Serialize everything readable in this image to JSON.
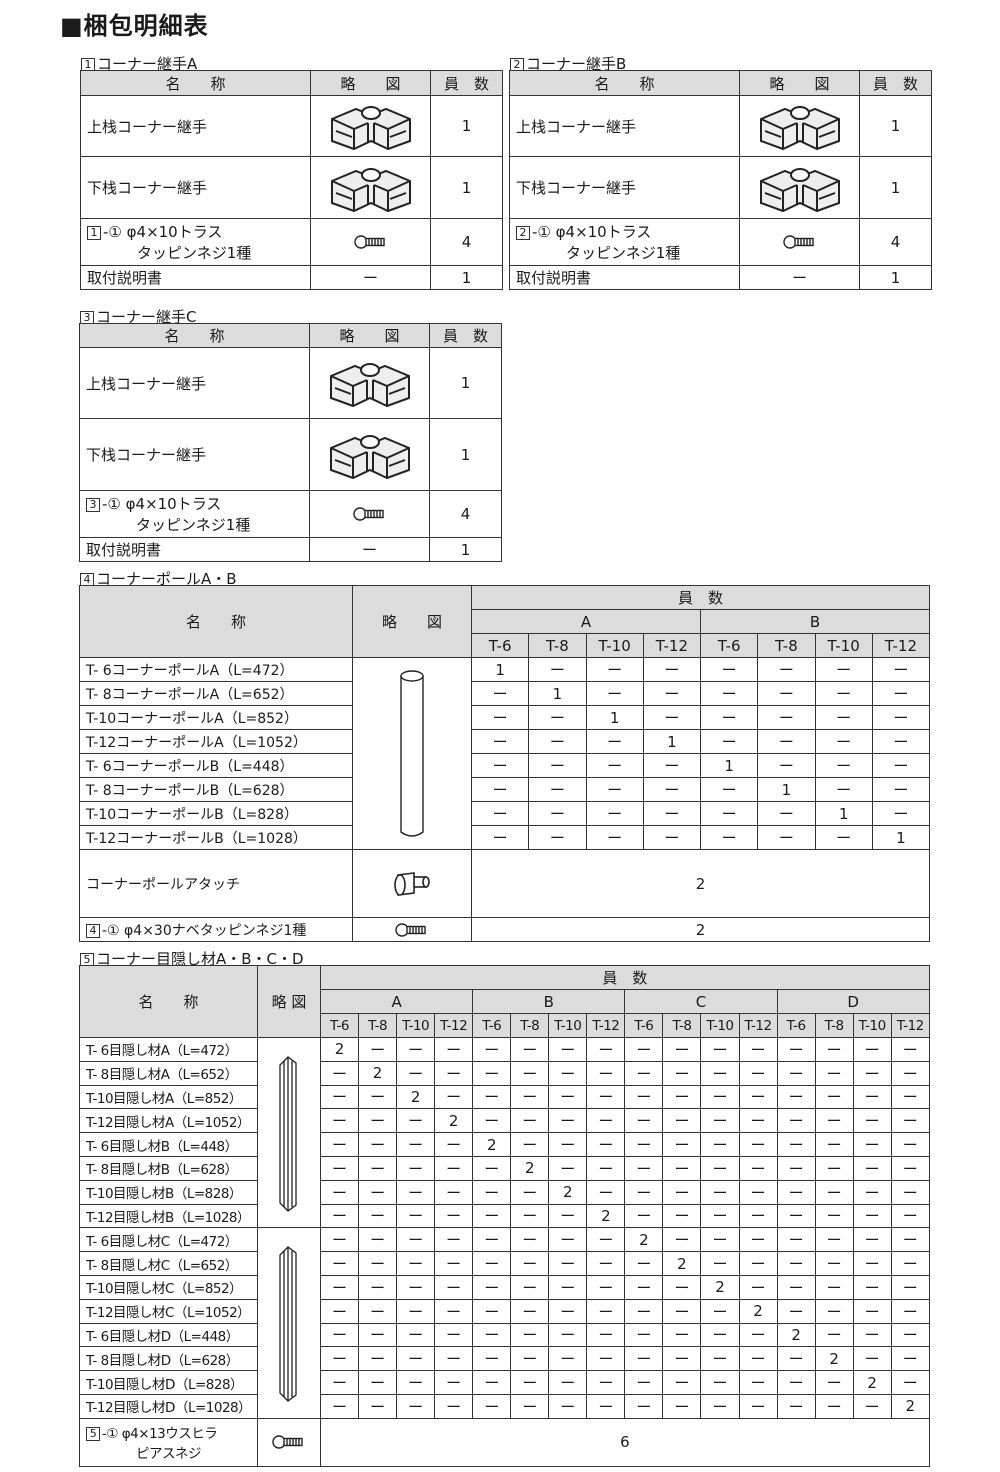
{
  "title": "■梱包明細表",
  "headers": {
    "name": "名　　称",
    "figure": "略　　図",
    "qty": "員　数",
    "figure_short": "略 図"
  },
  "table1": {
    "num": "1",
    "label": "コーナー継手A",
    "rows": [
      {
        "name": "上栈コーナー継手",
        "icon": "corner-joint-icon",
        "qty": "1"
      },
      {
        "name": "下栈コーナー継手",
        "icon": "corner-joint-icon",
        "qty": "1"
      },
      {
        "num": "1",
        "name": "-① φ4×10トラス",
        "name2": "タッピンネジ1種",
        "icon": "screw-icon",
        "qty": "4"
      },
      {
        "name": "取付説明書",
        "icon": "",
        "fig": "ー",
        "qty": "1"
      }
    ]
  },
  "table2": {
    "num": "2",
    "label": "コーナー継手B",
    "rows": [
      {
        "name": "上栈コーナー継手",
        "icon": "corner-joint-icon",
        "qty": "1"
      },
      {
        "name": "下栈コーナー継手",
        "icon": "corner-joint-icon",
        "qty": "1"
      },
      {
        "num": "2",
        "name": "-① φ4×10トラス",
        "name2": "タッピンネジ1種",
        "icon": "screw-icon",
        "qty": "4"
      },
      {
        "name": "取付説明書",
        "icon": "",
        "fig": "ー",
        "qty": "1"
      }
    ]
  },
  "table3": {
    "num": "3",
    "label": "コーナー継手C",
    "rows": [
      {
        "name": "上栈コーナー継手",
        "icon": "corner-joint-icon",
        "qty": "1"
      },
      {
        "name": "下栈コーナー継手",
        "icon": "corner-joint-icon",
        "qty": "1"
      },
      {
        "num": "3",
        "name": "-① φ4×10トラス",
        "name2": "タッピンネジ1種",
        "icon": "screw-icon",
        "qty": "4"
      },
      {
        "name": "取付説明書",
        "icon": "",
        "fig": "ー",
        "qty": "1"
      }
    ]
  },
  "table4": {
    "num": "4",
    "label": "コーナーポールA・B",
    "groups": [
      "A",
      "B"
    ],
    "types": [
      "T-6",
      "T-8",
      "T-10",
      "T-12"
    ],
    "rows": [
      "T- 6コーナーポールA（L=472）",
      "T- 8コーナーポールA（L=652）",
      "T-10コーナーポールA（L=852）",
      "T-12コーナーポールA（L=1052）",
      "T- 6コーナーポールB（L=448）",
      "T- 8コーナーポールB（L=628）",
      "T-10コーナーポールB（L=828）",
      "T-12コーナーポールB（L=1028）"
    ],
    "value": "1",
    "dash": "ー",
    "pole_icon": "pole-icon",
    "extra": [
      {
        "name": "コーナーポールアタッチ",
        "icon": "attach-icon",
        "qty": "2"
      },
      {
        "num": "4",
        "name": "-① φ4×30ナベタッピンネジ1種",
        "icon": "screw-icon",
        "qty": "2"
      }
    ]
  },
  "table5": {
    "num": "5",
    "label": "コーナー目隠し材A・B・C・D",
    "groups": [
      "A",
      "B",
      "C",
      "D"
    ],
    "types": [
      "T-6",
      "T-8",
      "T-10",
      "T-12"
    ],
    "rows": [
      "T- 6目隠し材A（L=472）",
      "T- 8目隠し材A（L=652）",
      "T-10目隠し材A（L=852）",
      "T-12目隠し材A（L=1052）",
      "T- 6目隠し材B（L=448）",
      "T- 8目隠し材B（L=628）",
      "T-10目隠し材B（L=828）",
      "T-12目隠し材B（L=1028）",
      "T- 6目隠し材C（L=472）",
      "T- 8目隠し材C（L=652）",
      "T-10目隠し材C（L=852）",
      "T-12目隠し材C（L=1052）",
      "T- 6目隠し材D（L=448）",
      "T- 8目隠し材D（L=628）",
      "T-10目隠し材D（L=828）",
      "T-12目隠し材D（L=1028）"
    ],
    "value": "2",
    "dash": "ー",
    "cover_icon": "cover-profile-icon",
    "extra": {
      "num": "5",
      "name": "-① φ4×13ウスヒラ",
      "name2": "ピアスネジ",
      "icon": "screw-icon",
      "qty": "6"
    }
  }
}
